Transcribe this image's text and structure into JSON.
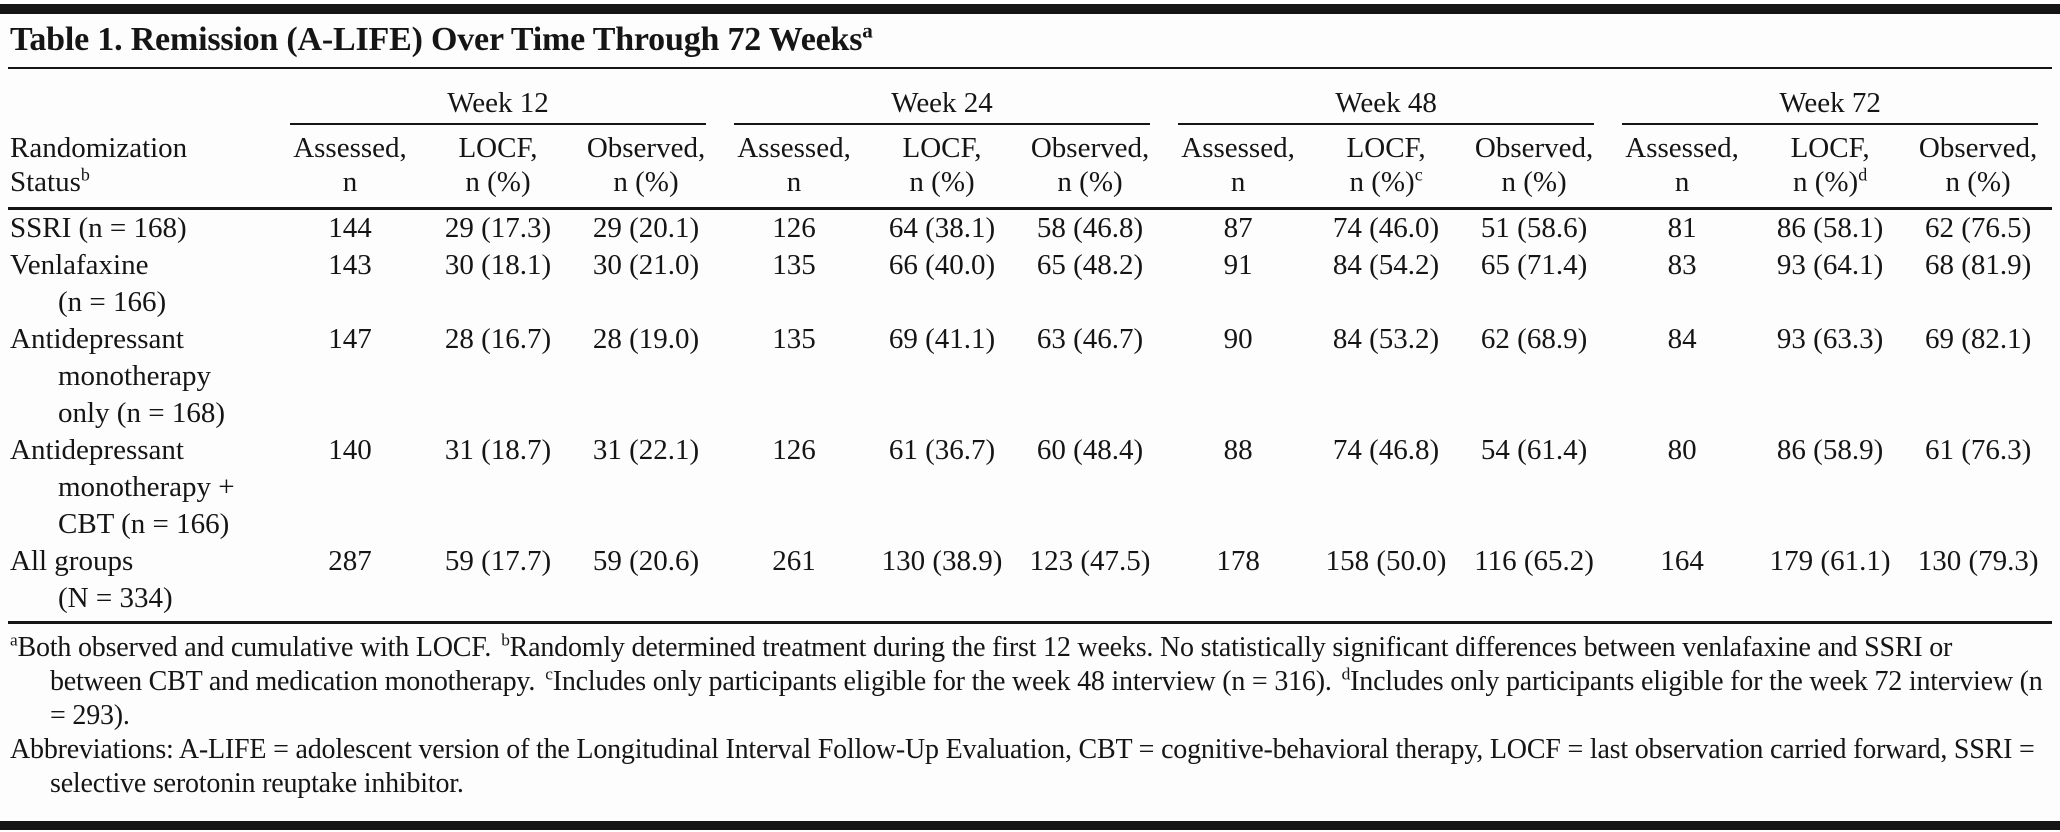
{
  "title": {
    "text": "Table 1. Remission (A-LIFE) Over Time Through 72 Weeks",
    "sup": "a"
  },
  "header": {
    "row_header": {
      "line1": "Randomization",
      "line2": "Status",
      "sup": "b"
    },
    "week_groups": [
      {
        "label": "Week 12"
      },
      {
        "label": "Week 24"
      },
      {
        "label": "Week 48"
      },
      {
        "label": "Week 72"
      }
    ],
    "columns": [
      {
        "line1": "Assessed,",
        "line2": "n",
        "sup": ""
      },
      {
        "line1": "LOCF,",
        "line2": "n (%)",
        "sup": ""
      },
      {
        "line1": "Observed,",
        "line2": "n (%)",
        "sup": ""
      },
      {
        "line1": "Assessed,",
        "line2": "n",
        "sup": ""
      },
      {
        "line1": "LOCF,",
        "line2": "n (%)",
        "sup": ""
      },
      {
        "line1": "Observed,",
        "line2": "n (%)",
        "sup": ""
      },
      {
        "line1": "Assessed,",
        "line2": "n",
        "sup": ""
      },
      {
        "line1": "LOCF,",
        "line2": "n (%)",
        "sup": "c"
      },
      {
        "line1": "Observed,",
        "line2": "n (%)",
        "sup": ""
      },
      {
        "line1": "Assessed,",
        "line2": "n",
        "sup": ""
      },
      {
        "line1": "LOCF,",
        "line2": "n (%)",
        "sup": "d"
      },
      {
        "line1": "Observed,",
        "line2": "n (%)",
        "sup": ""
      }
    ]
  },
  "rows": [
    {
      "label_lines": [
        "SSRI (n = 168)"
      ],
      "cells": [
        "144",
        "29 (17.3)",
        "29 (20.1)",
        "126",
        "64 (38.1)",
        "58 (46.8)",
        "87",
        "74 (46.0)",
        "51 (58.6)",
        "81",
        "86 (58.1)",
        "62 (76.5)"
      ]
    },
    {
      "label_lines": [
        "Venlafaxine",
        "(n = 166)"
      ],
      "cells": [
        "143",
        "30 (18.1)",
        "30 (21.0)",
        "135",
        "66 (40.0)",
        "65 (48.2)",
        "91",
        "84 (54.2)",
        "65 (71.4)",
        "83",
        "93 (64.1)",
        "68 (81.9)"
      ]
    },
    {
      "label_lines": [
        "Antidepressant",
        "monotherapy",
        "only (n = 168)"
      ],
      "cells": [
        "147",
        "28 (16.7)",
        "28 (19.0)",
        "135",
        "69 (41.1)",
        "63 (46.7)",
        "90",
        "84 (53.2)",
        "62 (68.9)",
        "84",
        "93 (63.3)",
        "69 (82.1)"
      ]
    },
    {
      "label_lines": [
        "Antidepressant",
        "monotherapy +",
        "CBT (n = 166)"
      ],
      "cells": [
        "140",
        "31 (18.7)",
        "31 (22.1)",
        "126",
        "61 (36.7)",
        "60 (48.4)",
        "88",
        "74 (46.8)",
        "54 (61.4)",
        "80",
        "86 (58.9)",
        "61 (76.3)"
      ]
    },
    {
      "label_lines": [
        "All groups",
        "(N = 334)"
      ],
      "cells": [
        "287",
        "59 (17.7)",
        "59 (20.6)",
        "261",
        "130 (38.9)",
        "123 (47.5)",
        "178",
        "158 (50.0)",
        "116 (65.2)",
        "164",
        "179 (61.1)",
        "130 (79.3)"
      ]
    }
  ],
  "footnotes": {
    "notes": [
      {
        "sup": "a",
        "text": "Both observed and cumulative with LOCF."
      },
      {
        "sup": "b",
        "text": "Randomly determined treatment during the first 12 weeks. No statistically significant differences between venlafaxine and SSRI or between CBT and medication monotherapy."
      },
      {
        "sup": "c",
        "text": "Includes only participants eligible for the week 48 interview (n = 316)."
      },
      {
        "sup": "d",
        "text": "Includes only participants eligible for the week 72 interview (n = 293)."
      }
    ],
    "abbreviations": "Abbreviations: A-LIFE = adolescent version of the Longitudinal Interval Follow-Up Evaluation, CBT = cognitive-behavioral therapy, LOCF = last observation carried forward, SSRI = selective serotonin reuptake inhibitor."
  }
}
